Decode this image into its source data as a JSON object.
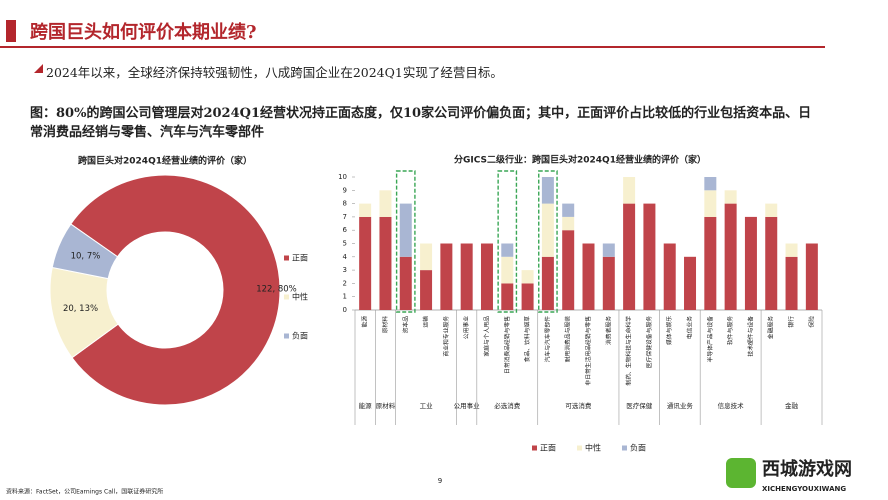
{
  "header": {
    "title": "跨国巨头如何评价本期业绩?"
  },
  "bullet": "2024年以来，全球经济保持较强韧性，八成跨国企业在2024Q1实现了经营目标。",
  "caption": "图：80%的跨国公司管理层对2024Q1经营状况持正面态度，仅10家公司评价偏负面；其中，正面评价占比较低的行业包括资本品、日常消费品经销与零售、汽车与汽车零部件",
  "chart_data": [
    {
      "type": "pie",
      "title": "跨国巨头对2024Q1经营业绩的评价（家）",
      "categories": [
        "正面",
        "中性",
        "负面"
      ],
      "values": [
        122,
        20,
        10
      ],
      "value_labels": [
        "122, 80%",
        "20, 13%",
        "10, 7%"
      ],
      "colors": [
        "#c0444a",
        "#f7f0cf",
        "#a9b6d3"
      ],
      "donut": true,
      "legend": "right"
    },
    {
      "type": "bar",
      "stacked": true,
      "title": "分GICS二级行业：跨国巨头对2024Q1经营业绩的评价（家）",
      "categories": [
        "能源",
        "原材料",
        "资本品",
        "运输",
        "商业和专业服务",
        "公用事业",
        "家庭与个人用品",
        "日常消费品经销与零售",
        "食品、饮料与烟草",
        "汽车与汽车零部件",
        "耐用消费品与服装",
        "非日常生活用品经销与零售",
        "消费者服务",
        "制药、生物科技与生命科学",
        "医疗保健设备与服务",
        "媒体与娱乐",
        "电信业务",
        "半导体产品与设备",
        "软件与服务",
        "技术硬件与设备",
        "金融服务",
        "银行",
        "保险"
      ],
      "groups": [
        {
          "label": "能源",
          "span": 1
        },
        {
          "label": "原材料",
          "span": 1
        },
        {
          "label": "工业",
          "span": 3
        },
        {
          "label": "公用事业",
          "span": 1
        },
        {
          "label": "必选消费",
          "span": 3
        },
        {
          "label": "可选消费",
          "span": 4
        },
        {
          "label": "医疗保健",
          "span": 2
        },
        {
          "label": "通讯业务",
          "span": 2
        },
        {
          "label": "信息技术",
          "span": 3
        },
        {
          "label": "金融",
          "span": 3
        }
      ],
      "series": [
        {
          "name": "正面",
          "color": "#c0444a",
          "values": [
            7,
            7,
            4,
            3,
            5,
            5,
            5,
            2,
            2,
            4,
            6,
            5,
            4,
            8,
            8,
            5,
            4,
            7,
            8,
            7,
            7,
            4,
            5
          ]
        },
        {
          "name": "中性",
          "color": "#f7f0cf",
          "values": [
            1,
            2,
            0,
            2,
            0,
            0,
            0,
            2,
            1,
            4,
            1,
            0,
            0,
            2,
            0,
            0,
            0,
            2,
            1,
            0,
            1,
            1,
            0
          ]
        },
        {
          "name": "负面",
          "color": "#a9b6d3",
          "values": [
            0,
            0,
            4,
            0,
            0,
            0,
            0,
            1,
            0,
            2,
            1,
            0,
            1,
            0,
            0,
            0,
            0,
            1,
            0,
            0,
            0,
            0,
            0
          ]
        }
      ],
      "ylim": [
        0,
        10
      ],
      "yticks": [
        0,
        1,
        2,
        3,
        4,
        5,
        6,
        7,
        8,
        9,
        10
      ],
      "highlighted_categories": [
        2,
        7,
        9
      ],
      "grid": false,
      "legend": "bottom"
    }
  ],
  "source": "资料来源：FactSet，公司Earnings Call，国联证券研究所",
  "page_number": "9",
  "watermark": {
    "title": "西城游戏网",
    "subtitle": "XICHENGYOUXIWANG"
  }
}
